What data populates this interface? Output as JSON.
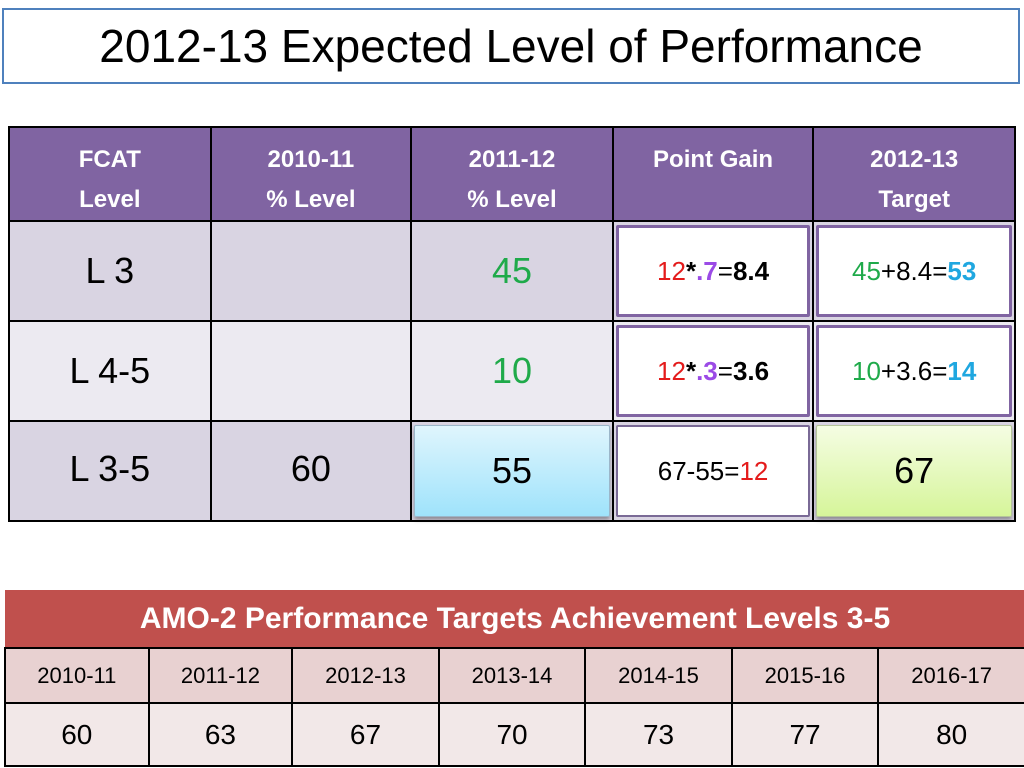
{
  "title": "2012-13 Expected Level of Performance",
  "colors": {
    "header_purple": "#8064a2",
    "banner_red": "#c0504d",
    "title_border_blue": "#4f81bd",
    "green": "#1faa4a",
    "red": "#e41b1b",
    "purple": "#9b4be6",
    "cyan": "#1fa7e0"
  },
  "performance_table": {
    "headers": [
      {
        "line1": "FCAT",
        "line2": "Level"
      },
      {
        "line1": "2010-11",
        "line2": "% Level"
      },
      {
        "line1": "2011-12",
        "line2": "% Level"
      },
      {
        "line1": "Point Gain",
        "line2": ""
      },
      {
        "line1": "2012-13",
        "line2": "Target"
      }
    ],
    "rows": [
      {
        "level": "L 3",
        "pct_2010": "",
        "pct_2011": "45",
        "gain": {
          "a": "12",
          "op": "*",
          "b": ".7",
          "eq": "=",
          "result": "8.4"
        },
        "target": {
          "a": "45",
          "mid": "+8.4=",
          "result": "53"
        }
      },
      {
        "level": "L 4-5",
        "pct_2010": "",
        "pct_2011": "10",
        "gain": {
          "a": "12",
          "op": "*",
          "b": ".3",
          "eq": "=",
          "result": "3.6"
        },
        "target": {
          "a": "10",
          "mid": "+3.6=",
          "result": "14"
        }
      },
      {
        "level": "L 3-5",
        "pct_2010": "60",
        "pct_2011": "55",
        "gain": {
          "prefix": "67-55=",
          "result": "12"
        },
        "target": {
          "value": "67"
        }
      }
    ]
  },
  "amo_table": {
    "title": "AMO-2 Performance Targets Achievement Levels 3-5",
    "years": [
      "2010-11",
      "2011-12",
      "2012-13",
      "2013-14",
      "2014-15",
      "2015-16",
      "2016-17"
    ],
    "values": [
      "60",
      "63",
      "67",
      "70",
      "73",
      "77",
      "80"
    ]
  }
}
